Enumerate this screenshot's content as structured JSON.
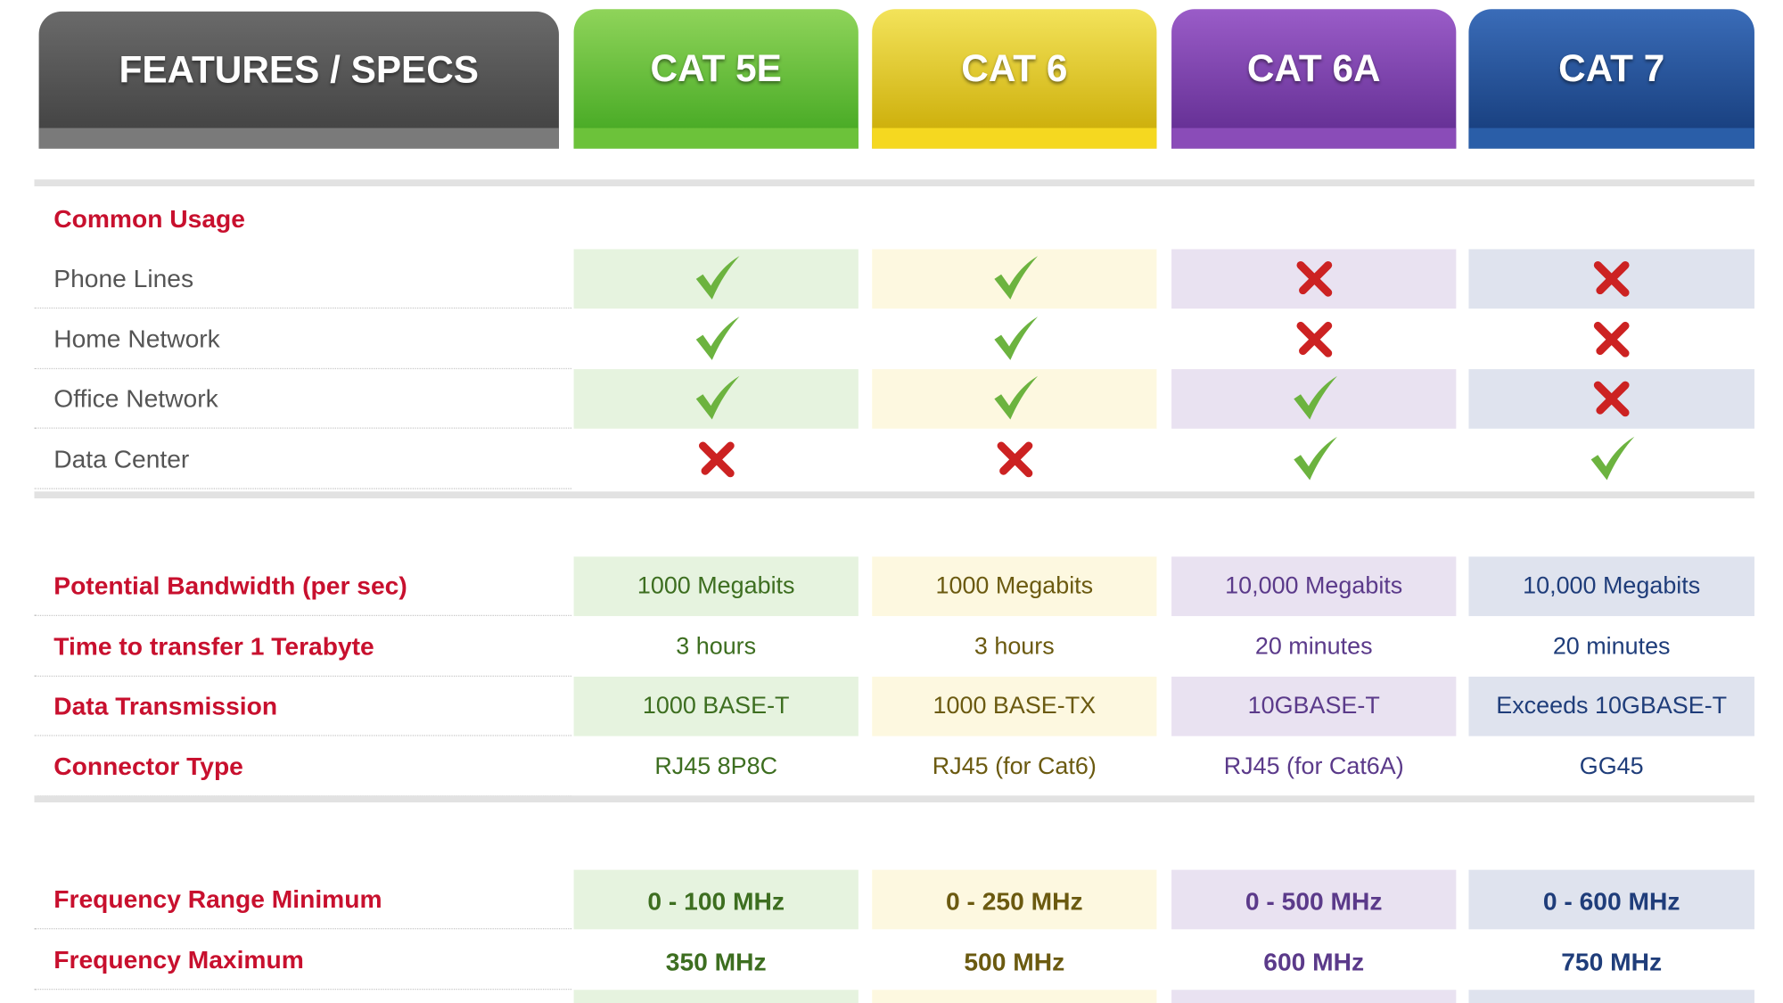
{
  "header": {
    "features": "FEATURES / SPECS",
    "columns": [
      "CAT 5E",
      "CAT 6",
      "CAT 6A",
      "CAT 7"
    ]
  },
  "sections": [
    {
      "title": "Common Usage",
      "rows": [
        {
          "label": "Phone Lines",
          "support": [
            true,
            true,
            false,
            false
          ]
        },
        {
          "label": "Home Network",
          "support": [
            true,
            true,
            false,
            false
          ]
        },
        {
          "label": "Office Network",
          "support": [
            true,
            true,
            true,
            false
          ]
        },
        {
          "label": "Data Center",
          "support": [
            false,
            false,
            true,
            true
          ]
        }
      ]
    },
    {
      "rows": [
        {
          "label": "Potential Bandwidth (per sec)",
          "values": [
            "1000 Megabits",
            "1000 Megabits",
            "10,000 Megabits",
            "10,000 Megabits"
          ]
        },
        {
          "label": "Time to transfer 1 Terabyte",
          "values": [
            "3 hours",
            "3 hours",
            "20 minutes",
            "20 minutes"
          ]
        },
        {
          "label": "Data Transmission",
          "values": [
            "1000 BASE-T",
            "1000 BASE-TX",
            "10GBASE-T",
            "Exceeds 10GBASE-T"
          ]
        },
        {
          "label": "Connector Type",
          "values": [
            "RJ45 8P8C",
            "RJ45 (for Cat6)",
            "RJ45 (for Cat6A)",
            "GG45"
          ]
        }
      ]
    },
    {
      "rows": [
        {
          "label": "Frequency Range Minimum",
          "values": [
            "0 - 100 MHz",
            "0 - 250 MHz",
            "0 - 500 MHz",
            "0 - 600 MHz"
          ]
        },
        {
          "label": "Frequency Maximum",
          "values": [
            "350 MHz",
            "500 MHz",
            "600 MHz",
            "750 MHz"
          ]
        }
      ]
    }
  ]
}
